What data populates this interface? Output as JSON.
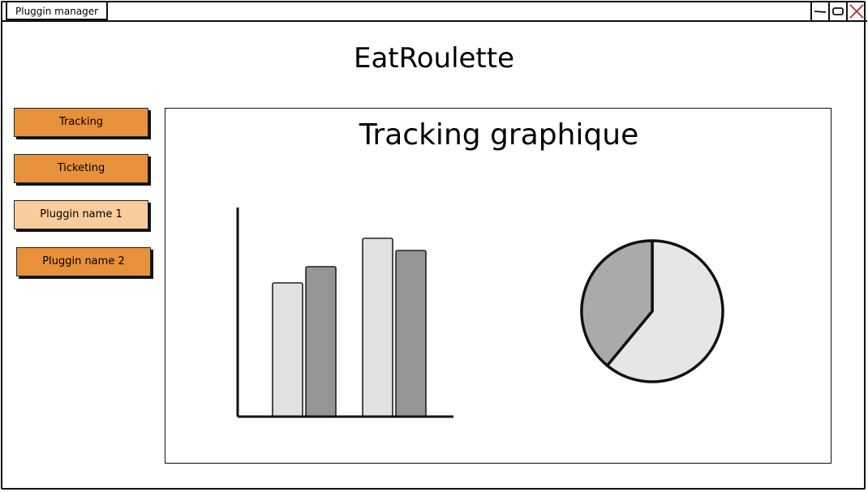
{
  "window": {
    "tab_label": "Pluggin manager",
    "controls": [
      "minimize-icon",
      "restore-icon",
      "close-icon"
    ]
  },
  "app": {
    "title": "EatRoulette"
  },
  "sidebar": {
    "items": [
      {
        "label": "Tracking",
        "state": "active"
      },
      {
        "label": "Ticketing",
        "state": "active"
      },
      {
        "label": "Pluggin name 1",
        "state": "light"
      },
      {
        "label": "Pluggin name 2",
        "state": "active"
      }
    ]
  },
  "panel": {
    "title": "Tracking graphique"
  },
  "colors": {
    "button_orange": "#e8913b",
    "button_light_orange": "#f9cc9d",
    "series_light": "#e1e1e1",
    "series_dark": "#959595",
    "pie_light": "#e6e6e6",
    "pie_dark": "#aaaaaa"
  },
  "chart_data": [
    {
      "type": "bar",
      "categories": [
        "",
        ""
      ],
      "series": [
        {
          "values": [
            66,
            88
          ],
          "color": "#e1e1e1"
        },
        {
          "values": [
            74,
            82
          ],
          "color": "#959595"
        }
      ],
      "ylim": [
        0,
        100
      ],
      "grid": false
    },
    {
      "type": "pie",
      "values": [
        61,
        39
      ],
      "colors": [
        "#e6e6e6",
        "#aaaaaa"
      ]
    }
  ]
}
